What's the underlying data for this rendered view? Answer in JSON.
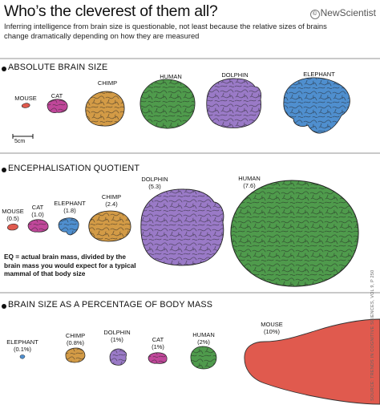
{
  "header": {
    "title": "Who’s the cleverest of them all?",
    "subtitle": "Inferring intelligence from brain size is questionable, not least because the relative sizes of brains change dramatically depending on how they are measured",
    "brand": "NewScientist",
    "brand_mark": "©"
  },
  "sections": [
    {
      "title": "ABSOLUTE BRAIN SIZE",
      "brains": [
        {
          "name": "MOUSE",
          "color": "#e05a4e"
        },
        {
          "name": "CAT",
          "color": "#c0479a"
        },
        {
          "name": "CHIMP",
          "color": "#d39b46"
        },
        {
          "name": "HUMAN",
          "color": "#4f9b4c"
        },
        {
          "name": "DOLPHIN",
          "color": "#9a7ac7"
        },
        {
          "name": "ELEPHANT",
          "color": "#4f8fcf"
        }
      ],
      "scale_label": "5cm"
    },
    {
      "title": "ENCEPHALISATION QUOTIENT",
      "brains": [
        {
          "name": "MOUSE",
          "value": "(0.5)"
        },
        {
          "name": "CAT",
          "value": "(1.0)"
        },
        {
          "name": "ELEPHANT",
          "value": "(1.8)"
        },
        {
          "name": "CHIMP",
          "value": "(2.4)"
        },
        {
          "name": "DOLPHIN",
          "value": "(5.3)"
        },
        {
          "name": "HUMAN",
          "value": "(7.6)"
        }
      ],
      "note": "EQ = actual brain mass, divided by the brain mass you would expect for a typical mammal of that body size"
    },
    {
      "title": "BRAIN SIZE AS A PERCENTAGE OF BODY MASS",
      "brains": [
        {
          "name": "ELEPHANT",
          "value": "(0.1%)"
        },
        {
          "name": "CHIMP",
          "value": "(0.8%)"
        },
        {
          "name": "DOLPHIN",
          "value": "(1%)"
        },
        {
          "name": "CAT",
          "value": "(1%)"
        },
        {
          "name": "HUMAN",
          "value": "(2%)"
        },
        {
          "name": "MOUSE",
          "value": "(10%)"
        }
      ]
    }
  ],
  "source": "SOURCE: TRENDS IN COGNITIVE SCIENCES, VOL 9, P 250"
}
